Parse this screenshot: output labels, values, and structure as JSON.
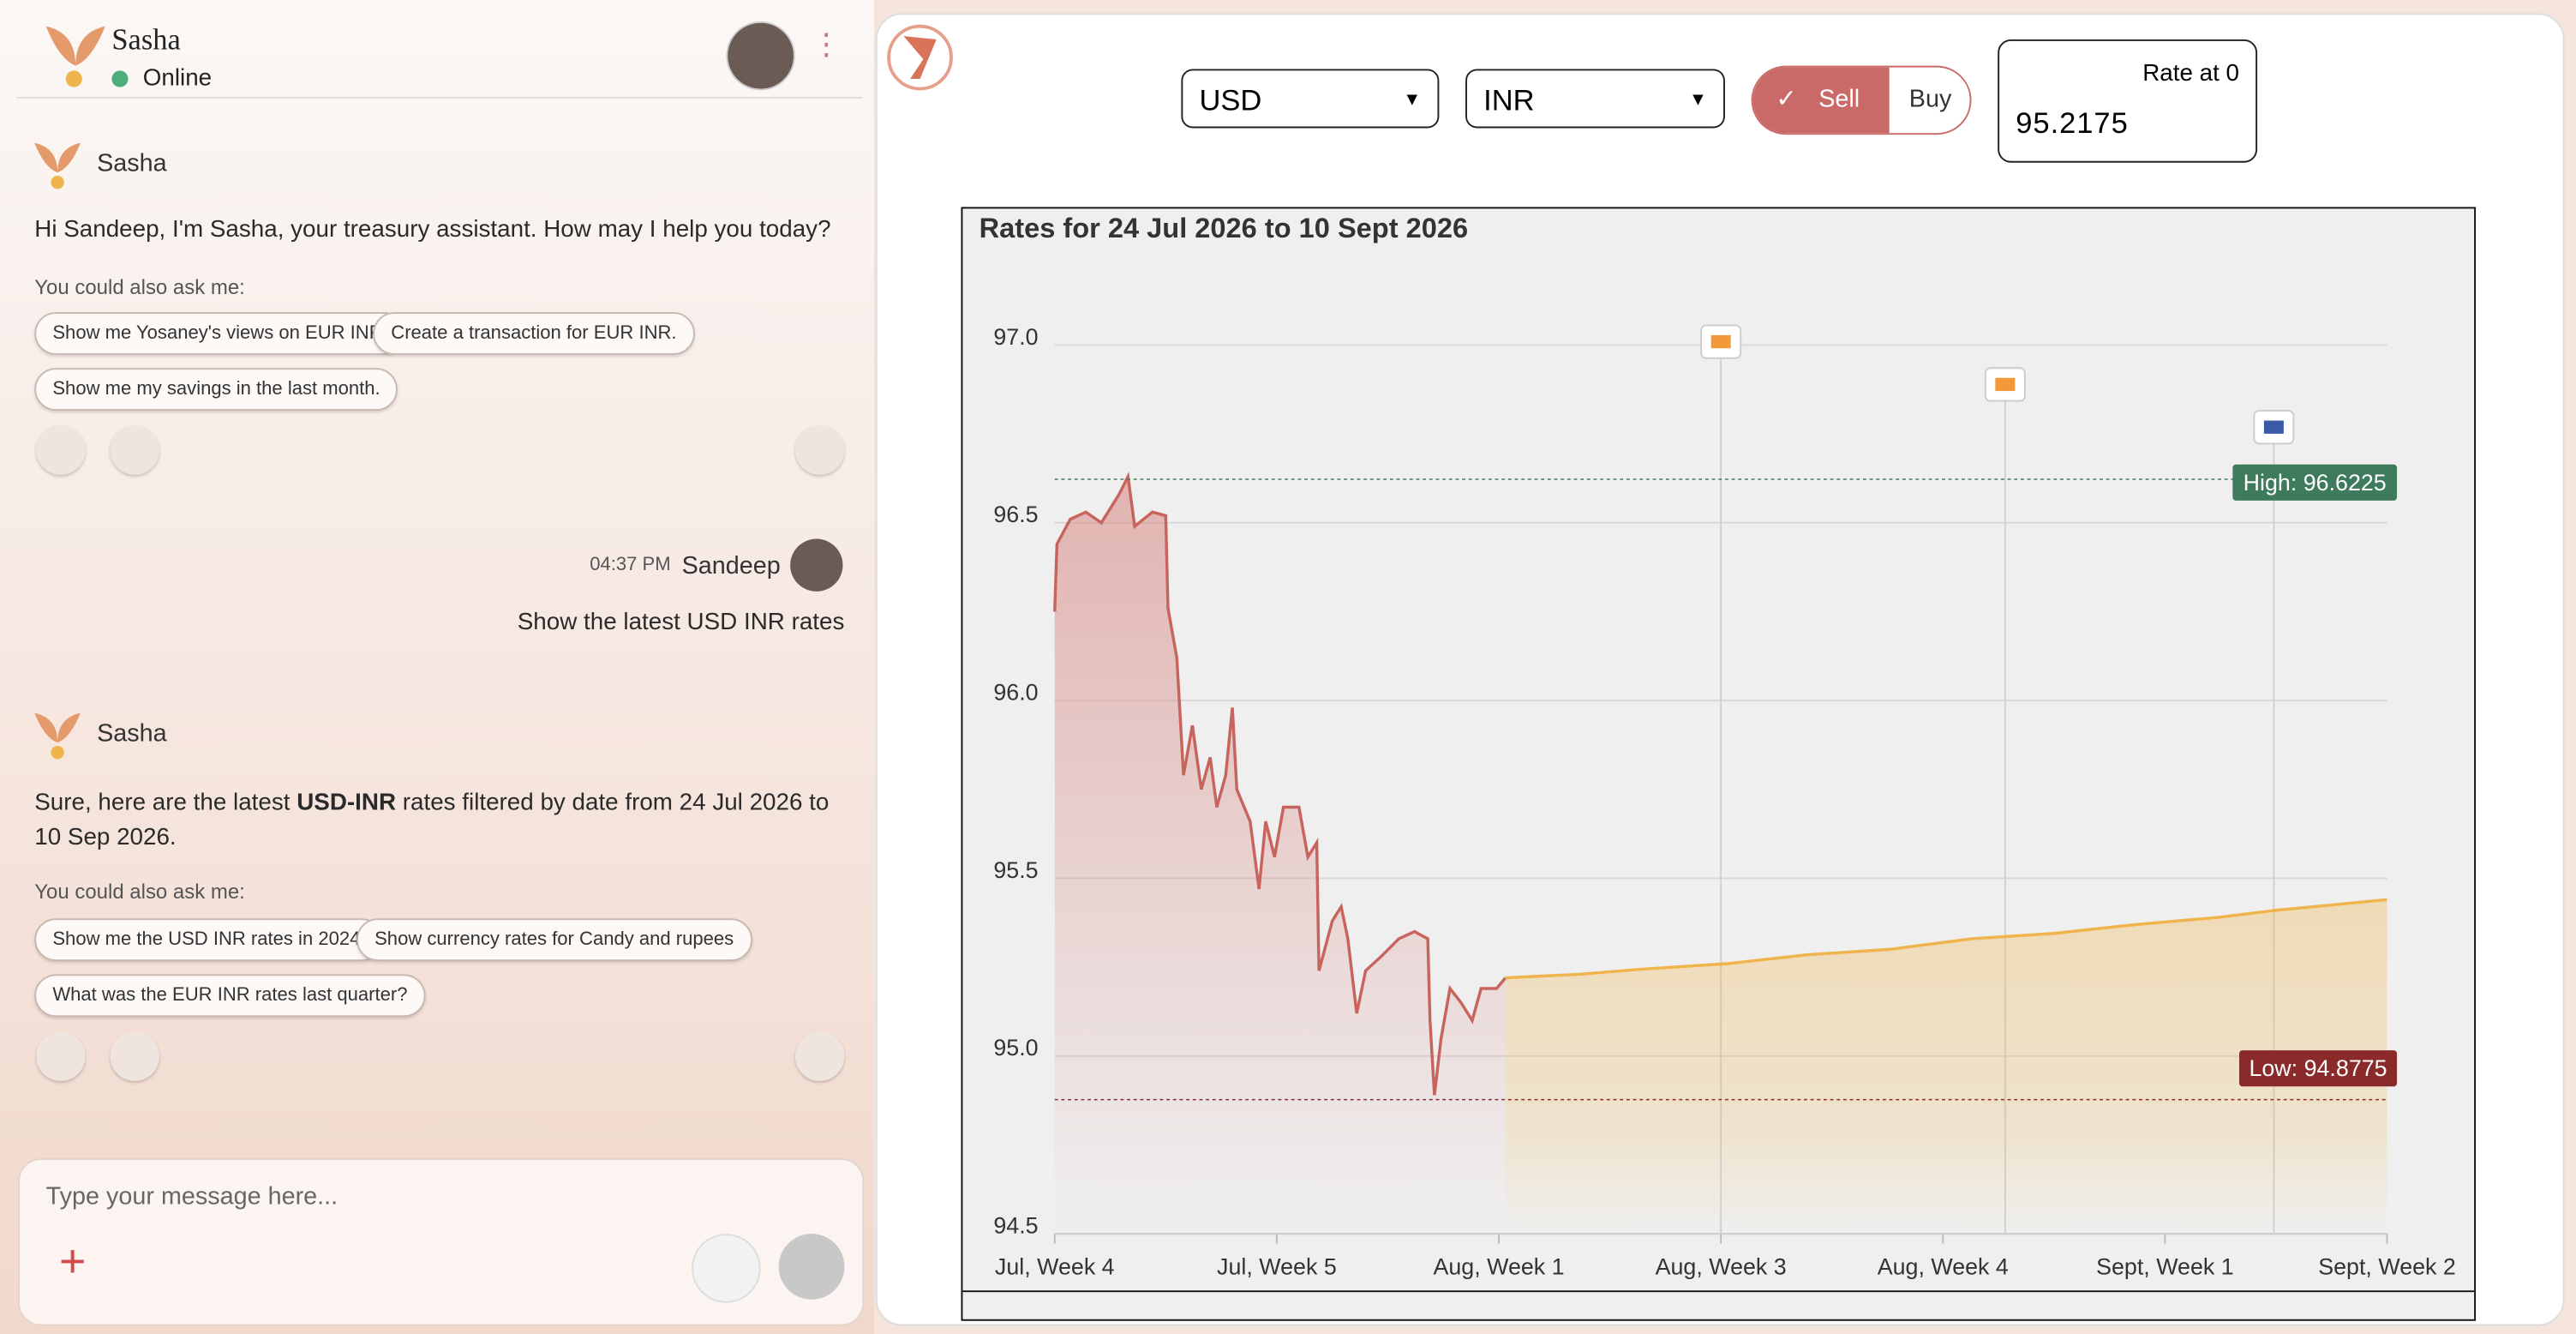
{
  "chat": {
    "header": {
      "name": "Sasha",
      "status": "Online"
    },
    "messages": [
      {
        "sender": "Sasha",
        "text": "Hi Sandeep, I'm Sasha, your treasury assistant. How may I help you today?",
        "prompt": "You could also ask me:",
        "suggestions": [
          "Show me Yosaney's views on EUR INR.",
          "Create a transaction for EUR INR.",
          "Show me my savings in the last month."
        ]
      },
      {
        "time": "04:37 PM",
        "sender": "Sandeep",
        "text": "Show the latest USD INR rates"
      },
      {
        "sender": "Sasha",
        "text": [
          "Sure, here are the latest ",
          "USD-INR",
          " rates filtered by date from 24 Jul 2026 to 10 Sep 2026."
        ],
        "prompt": "You could also ask me:",
        "suggestions": [
          "Show me the USD INR rates in 2024.",
          "Show currency rates for Candy and rupees",
          "What was the EUR INR rates last quarter?"
        ]
      }
    ],
    "placeholder": "Type your message here..."
  },
  "controls": {
    "from": "USD",
    "to": "INR",
    "sell": "Sell",
    "buy": "Buy",
    "rate_label": "Rate at 0",
    "rate": "95.2175"
  },
  "chart_data": {
    "type": "line",
    "title": "Rates for 24 Jul 2026 to 10 Sept 2026",
    "xlim": [
      0,
      6
    ],
    "xticks": [
      {
        "value": 0,
        "label": "Jul, Week 4"
      },
      {
        "value": 1,
        "label": "Jul, Week 5"
      },
      {
        "value": 2,
        "label": "Aug, Week 1"
      },
      {
        "value": 3,
        "label": "Aug, Week 3"
      },
      {
        "value": 4,
        "label": "Aug, Week 4"
      },
      {
        "value": 5,
        "label": "Sept, Week 1"
      },
      {
        "value": 6,
        "label": "Sept, Week 2"
      }
    ],
    "ylim": [
      94.5,
      97.0
    ],
    "yticks": [
      {
        "value": 94.5,
        "label": "94.5"
      },
      {
        "value": 95,
        "label": "95.0"
      },
      95.5,
      {
        "value": 96,
        "label": "96.0"
      },
      96.5,
      {
        "value": 97,
        "label": "97.0"
      }
    ],
    "grid": true,
    "series": [
      {
        "color": "#c8645e",
        "x": [
          0,
          0.01,
          0.07,
          0.14,
          0.21,
          0.29,
          0.33,
          0.36,
          0.44,
          0.5,
          0.51,
          0.55,
          0.58,
          0.62,
          0.66,
          0.7,
          0.73,
          0.77,
          0.8,
          0.82,
          0.88,
          0.92,
          0.95,
          0.99,
          1.03,
          1.1,
          1.14,
          1.18,
          1.19,
          1.25,
          1.29,
          1.32,
          1.36,
          1.4,
          1.47,
          1.55,
          1.62,
          1.68,
          1.69,
          1.71,
          1.74,
          1.78,
          1.83,
          1.88,
          1.92,
          1.99,
          2.03
        ],
        "values": [
          96.25,
          96.44,
          96.51,
          96.53,
          96.5,
          96.58,
          96.63,
          96.49,
          96.53,
          96.52,
          96.26,
          96.12,
          95.79,
          95.93,
          95.75,
          95.84,
          95.7,
          95.79,
          95.98,
          95.75,
          95.66,
          95.47,
          95.66,
          95.56,
          95.7,
          95.7,
          95.56,
          95.6,
          95.24,
          95.38,
          95.42,
          95.33,
          95.12,
          95.24,
          95.28,
          95.33,
          95.35,
          95.33,
          95.1,
          94.89,
          95.05,
          95.19,
          95.15,
          95.1,
          95.19,
          95.19,
          95.22
        ]
      },
      {
        "color": "#f0b44c",
        "x": [
          2.03,
          2.36,
          2.66,
          3.03,
          3.39,
          3.76,
          4.13,
          4.5,
          4.87,
          5.24,
          5.5,
          6.0
        ],
        "values": [
          95.22,
          95.23,
          95.245,
          95.26,
          95.285,
          95.3,
          95.33,
          95.345,
          95.37,
          95.39,
          95.41,
          95.44
        ]
      }
    ],
    "high": {
      "value": 96.6225,
      "label": "High: 96.6225",
      "color": "#3e7a5c"
    },
    "low": {
      "value": 94.8775,
      "label": "Low: 94.8775",
      "color": "#8b2a2a"
    },
    "events": [
      3,
      4.28,
      5.49
    ]
  }
}
